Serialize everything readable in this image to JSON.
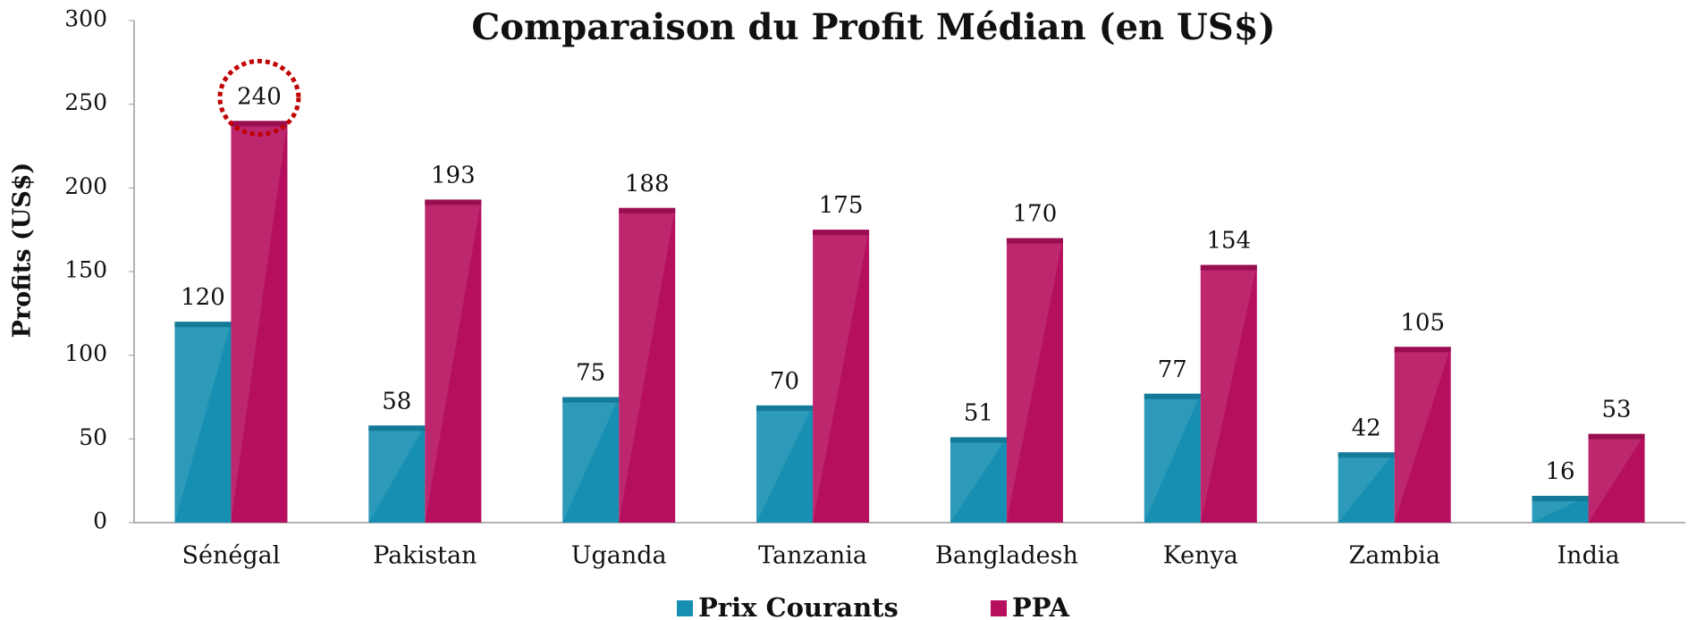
{
  "chart_data": {
    "type": "bar",
    "title": "Comparaison du Profit Médian (en US$)",
    "y_label": "Profits (US$)",
    "categories": [
      "Sénégal",
      "Pakistan",
      "Uganda",
      "Tanzania",
      "Bangladesh",
      "Kenya",
      "Zambia",
      "India"
    ],
    "series": [
      {
        "name": "Prix Courants",
        "color": "#168fb2",
        "values": [
          120,
          58,
          75,
          70,
          51,
          77,
          42,
          16
        ]
      },
      {
        "name": "PPA",
        "color": "#b50f5e",
        "values": [
          240,
          193,
          188,
          175,
          170,
          154,
          105,
          53
        ]
      }
    ],
    "ylim": [
      0,
      300
    ],
    "yticks": [
      0,
      50,
      100,
      150,
      200,
      250,
      300
    ],
    "grid": false,
    "legend": "bottom"
  }
}
